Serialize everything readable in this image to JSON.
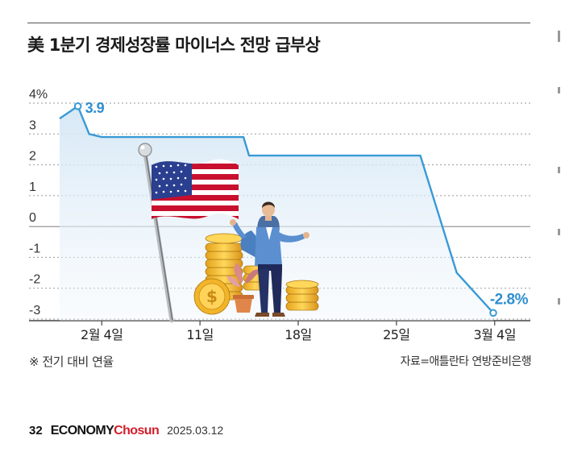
{
  "header": {
    "title": "美 1분기 경제성장률 마이너스 전망 급부상"
  },
  "chart_data": {
    "type": "area",
    "title": "美 1분기 경제성장률 마이너스 전망 급부상",
    "xlabel": "",
    "ylabel": "",
    "yunit": "%",
    "ylim": [
      -3.2,
      4.4
    ],
    "yticks": [
      {
        "v": 4,
        "label": "4%"
      },
      {
        "v": 3,
        "label": "3"
      },
      {
        "v": 2,
        "label": "2"
      },
      {
        "v": 1,
        "label": "1"
      },
      {
        "v": 0,
        "label": "0"
      },
      {
        "v": -1,
        "label": "-1"
      },
      {
        "v": -2,
        "label": "-2"
      },
      {
        "v": -3,
        "label": "-3"
      }
    ],
    "xticks": [
      {
        "label": "2월 4일",
        "day": 3
      },
      {
        "label": "11일",
        "day": 10
      },
      {
        "label": "18일",
        "day": 17
      },
      {
        "label": "25일",
        "day": 24
      },
      {
        "label": "3월 4일",
        "day": 31
      }
    ],
    "series": [
      {
        "name": "",
        "points": [
          {
            "day": 0,
            "y": 3.5
          },
          {
            "day": 1.3,
            "y": 3.9
          },
          {
            "day": 2.1,
            "y": 3.0
          },
          {
            "day": 3,
            "y": 2.9
          },
          {
            "day": 13.1,
            "y": 2.9
          },
          {
            "day": 13.5,
            "y": 2.3
          },
          {
            "day": 25.7,
            "y": 2.3
          },
          {
            "day": 28.3,
            "y": -1.5
          },
          {
            "day": 30.9,
            "y": -2.8
          }
        ]
      }
    ],
    "annotations": [
      {
        "day": 1.3,
        "y": 3.9,
        "label": "3.9"
      },
      {
        "day": 30.9,
        "y": -2.8,
        "label": "-2.8%"
      }
    ],
    "grid": true,
    "legend": "none"
  },
  "notes": {
    "left": "※ 전기 대비 연율",
    "source": "자료=애틀란타 연방준비은행"
  },
  "footer": {
    "page": "32",
    "brand_a": "ECONOMY",
    "brand_b": "Chosun",
    "date": "2025.03.12"
  },
  "colors": {
    "line": "#3a9ad6",
    "label": "#2f8fd0",
    "grid": "#8a8a8a",
    "fill_top": "#d4e7f5",
    "brand_red": "#d21e2b"
  },
  "illustration": {
    "icons": [
      "us-flag-icon",
      "businessman-icon",
      "coin-stack-icon",
      "plant-pot-icon"
    ]
  }
}
